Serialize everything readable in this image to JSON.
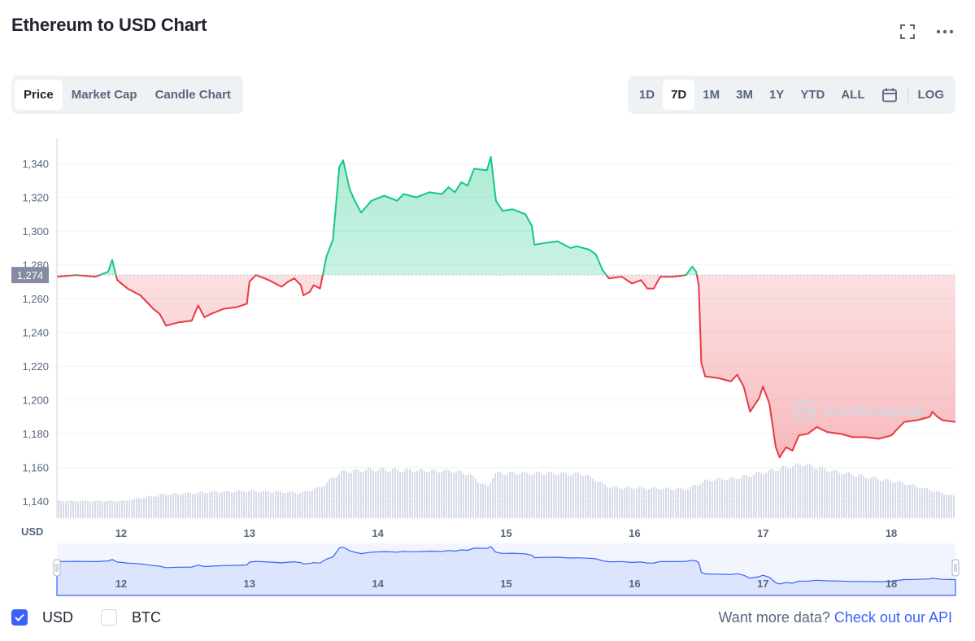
{
  "title": "Ethereum to USD Chart",
  "icons": {
    "fullscreen": "fullscreen-icon",
    "more": "more-icon",
    "calendar": "calendar-icon",
    "check": "check-icon"
  },
  "tabs": [
    {
      "label": "Price",
      "active": true
    },
    {
      "label": "Market Cap",
      "active": false
    },
    {
      "label": "Candle Chart",
      "active": false
    }
  ],
  "ranges": [
    {
      "label": "1D",
      "active": false
    },
    {
      "label": "7D",
      "active": true
    },
    {
      "label": "1M",
      "active": false
    },
    {
      "label": "3M",
      "active": false
    },
    {
      "label": "1Y",
      "active": false
    },
    {
      "label": "YTD",
      "active": false
    },
    {
      "label": "ALL",
      "active": false
    }
  ],
  "log_label": "LOG",
  "currency_checks": [
    {
      "label": "USD",
      "checked": true
    },
    {
      "label": "BTC",
      "checked": false
    }
  ],
  "api_text": "Want more data?",
  "api_link": "Check out our API",
  "watermark": "CoinMarketCap",
  "colors": {
    "up": "#16c784",
    "down": "#ea3943",
    "accent": "#3861fb",
    "volume": "#cfd6e4",
    "navigator": "#dde4fd"
  },
  "chart_data": {
    "type": "area",
    "x_unit": "day (May 2022)",
    "ylabel": "USD",
    "ylim": [
      1130,
      1355
    ],
    "xlim": [
      11.5,
      18.5
    ],
    "baseline": 1274,
    "baseline_label": "1,274",
    "yticks": [
      1140,
      1160,
      1180,
      1200,
      1220,
      1240,
      1260,
      1280,
      1300,
      1320,
      1340
    ],
    "ytick_labels": [
      "1,140",
      "1,160",
      "1,180",
      "1,200",
      "1,220",
      "1,240",
      "1,260",
      "1,280",
      "1,300",
      "1,320",
      "1,340"
    ],
    "xticks": [
      12,
      13,
      14,
      15,
      16,
      17,
      18
    ],
    "xtick_labels": [
      "12",
      "13",
      "14",
      "15",
      "16",
      "17",
      "18"
    ],
    "series": [
      {
        "values": [
          [
            11.5,
            1273
          ],
          [
            11.65,
            1274
          ],
          [
            11.8,
            1273
          ],
          [
            11.9,
            1276
          ],
          [
            11.93,
            1283
          ],
          [
            11.97,
            1271
          ],
          [
            12.05,
            1266
          ],
          [
            12.15,
            1262
          ],
          [
            12.25,
            1254
          ],
          [
            12.3,
            1251
          ],
          [
            12.35,
            1244
          ],
          [
            12.45,
            1246
          ],
          [
            12.55,
            1247
          ],
          [
            12.6,
            1256
          ],
          [
            12.65,
            1249
          ],
          [
            12.7,
            1251
          ],
          [
            12.8,
            1254
          ],
          [
            12.9,
            1255
          ],
          [
            12.98,
            1257
          ],
          [
            13.0,
            1270
          ],
          [
            13.05,
            1274
          ],
          [
            13.15,
            1271
          ],
          [
            13.25,
            1267
          ],
          [
            13.3,
            1270
          ],
          [
            13.35,
            1272
          ],
          [
            13.4,
            1268
          ],
          [
            13.42,
            1262
          ],
          [
            13.47,
            1264
          ],
          [
            13.5,
            1268
          ],
          [
            13.55,
            1266
          ],
          [
            13.6,
            1285
          ],
          [
            13.65,
            1295
          ],
          [
            13.7,
            1338
          ],
          [
            13.73,
            1342
          ],
          [
            13.78,
            1325
          ],
          [
            13.82,
            1318
          ],
          [
            13.87,
            1311
          ],
          [
            13.95,
            1318
          ],
          [
            14.05,
            1321
          ],
          [
            14.15,
            1318
          ],
          [
            14.2,
            1322
          ],
          [
            14.3,
            1320
          ],
          [
            14.4,
            1323
          ],
          [
            14.5,
            1322
          ],
          [
            14.55,
            1326
          ],
          [
            14.6,
            1323
          ],
          [
            14.65,
            1329
          ],
          [
            14.7,
            1327
          ],
          [
            14.75,
            1337
          ],
          [
            14.85,
            1336
          ],
          [
            14.88,
            1344
          ],
          [
            14.92,
            1318
          ],
          [
            14.97,
            1312
          ],
          [
            15.05,
            1313
          ],
          [
            15.15,
            1310
          ],
          [
            15.2,
            1303
          ],
          [
            15.22,
            1292
          ],
          [
            15.3,
            1293
          ],
          [
            15.4,
            1294
          ],
          [
            15.5,
            1290
          ],
          [
            15.55,
            1291
          ],
          [
            15.65,
            1289
          ],
          [
            15.7,
            1286
          ],
          [
            15.75,
            1277
          ],
          [
            15.8,
            1272
          ],
          [
            15.9,
            1273
          ],
          [
            15.98,
            1269
          ],
          [
            16.05,
            1271
          ],
          [
            16.1,
            1266
          ],
          [
            16.15,
            1266
          ],
          [
            16.2,
            1273
          ],
          [
            16.3,
            1273
          ],
          [
            16.4,
            1274
          ],
          [
            16.45,
            1279
          ],
          [
            16.48,
            1276
          ],
          [
            16.5,
            1268
          ],
          [
            16.52,
            1222
          ],
          [
            16.55,
            1214
          ],
          [
            16.65,
            1213
          ],
          [
            16.75,
            1211
          ],
          [
            16.8,
            1215
          ],
          [
            16.85,
            1208
          ],
          [
            16.9,
            1193
          ],
          [
            16.97,
            1201
          ],
          [
            17.0,
            1208
          ],
          [
            17.05,
            1198
          ],
          [
            17.1,
            1172
          ],
          [
            17.13,
            1166
          ],
          [
            17.18,
            1172
          ],
          [
            17.23,
            1170
          ],
          [
            17.28,
            1179
          ],
          [
            17.35,
            1180
          ],
          [
            17.42,
            1184
          ],
          [
            17.5,
            1181
          ],
          [
            17.6,
            1180
          ],
          [
            17.7,
            1178
          ],
          [
            17.8,
            1178
          ],
          [
            17.9,
            1177
          ],
          [
            18.0,
            1179
          ],
          [
            18.1,
            1187
          ],
          [
            18.2,
            1188
          ],
          [
            18.3,
            1190
          ],
          [
            18.32,
            1193
          ],
          [
            18.36,
            1190
          ],
          [
            18.4,
            1188
          ],
          [
            18.5,
            1187
          ]
        ]
      }
    ],
    "volume_relative": [
      [
        11.5,
        0.18
      ],
      [
        12.0,
        0.18
      ],
      [
        12.3,
        0.25
      ],
      [
        12.7,
        0.28
      ],
      [
        13.0,
        0.29
      ],
      [
        13.4,
        0.27
      ],
      [
        13.55,
        0.33
      ],
      [
        13.7,
        0.49
      ],
      [
        13.95,
        0.52
      ],
      [
        14.6,
        0.5
      ],
      [
        14.7,
        0.47
      ],
      [
        14.85,
        0.33
      ],
      [
        14.9,
        0.48
      ],
      [
        15.3,
        0.48
      ],
      [
        15.6,
        0.47
      ],
      [
        15.8,
        0.33
      ],
      [
        16.4,
        0.31
      ],
      [
        16.55,
        0.4
      ],
      [
        16.8,
        0.43
      ],
      [
        17.0,
        0.49
      ],
      [
        17.3,
        0.58
      ],
      [
        17.5,
        0.51
      ],
      [
        17.85,
        0.43
      ],
      [
        18.1,
        0.37
      ],
      [
        18.5,
        0.23
      ]
    ]
  }
}
